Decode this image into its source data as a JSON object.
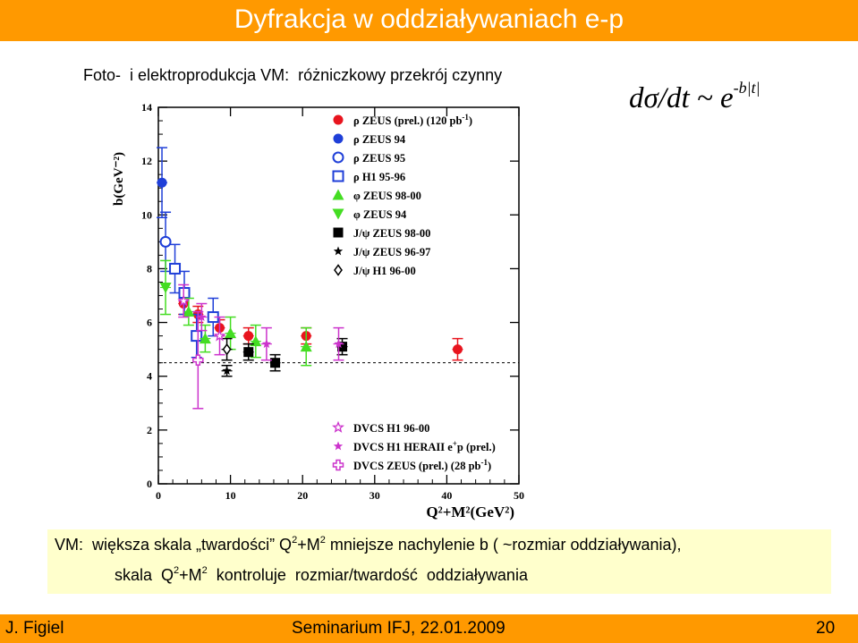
{
  "title": "Dyfrakcja w oddziaływaniach e-p",
  "subtitle": "Foto-  i elektroprodukcja VM:  różniczkowy przekrój czynny",
  "formula": {
    "base": "dσ/dt ~ e",
    "exp": "-b|t|"
  },
  "note": {
    "line1_a": "VM:  większa skala „twardości” Q",
    "line1_sup1": "2",
    "line1_b": "+M",
    "line1_sup2": "2",
    "line1_c": " mniejsze nachylenie b ( ~rozmiar oddziaływania),",
    "line2_a": "skala  Q",
    "line2_sup1": "2",
    "line2_b": "+M",
    "line2_sup2": "2",
    "line2_c": "  kontroluje  rozmiar/twardość  oddziaływania"
  },
  "footer": {
    "author": "J. Figiel",
    "event": "Seminarium IFJ, 22.01.2009",
    "page": "20"
  },
  "colors": {
    "accent": "#ff9900",
    "note_bg": "#ffffcc",
    "red": "#e8141e",
    "blue": "#1f3fd8",
    "green": "#44dd22",
    "magenta": "#cc33cc"
  },
  "chart_data": {
    "type": "scatter",
    "xlabel": "Q²+M²(GeV²)",
    "ylabel": "b(GeV⁻²)",
    "xlim": [
      0,
      50
    ],
    "ylim": [
      0,
      14
    ],
    "xticks": [
      "0",
      "10",
      "20",
      "30",
      "40",
      "50"
    ],
    "yticks": [
      "0",
      "2",
      "4",
      "6",
      "8",
      "10",
      "12",
      "14"
    ],
    "reference_line_y": 4.5,
    "series": [
      {
        "name": "ρ ZEUS (prel.) (120 pb",
        "sup": "-1",
        "name_end": ")",
        "marker": "filled-circle",
        "color": "#e8141e",
        "points": [
          [
            3.5,
            6.7,
            0.4
          ],
          [
            5.5,
            6.3,
            0.3
          ],
          [
            8.5,
            5.8,
            0.3
          ],
          [
            12.5,
            5.5,
            0.3
          ],
          [
            20.5,
            5.5,
            0.3
          ],
          [
            41.5,
            5.0,
            0.4
          ]
        ]
      },
      {
        "name": "ρ ZEUS 94",
        "marker": "filled-circle",
        "color": "#1f3fd8",
        "points": [
          [
            0.5,
            11.2,
            1.3
          ]
        ]
      },
      {
        "name": "ρ ZEUS 95",
        "marker": "open-circle",
        "color": "#1f3fd8",
        "points": [
          [
            1,
            9.0,
            1.1
          ]
        ]
      },
      {
        "name": "ρ H1 95-96",
        "marker": "open-square",
        "color": "#1f3fd8",
        "points": [
          [
            2.3,
            8.0,
            0.9
          ],
          [
            3.6,
            7.1,
            0.8
          ],
          [
            5.3,
            5.5,
            0.8
          ],
          [
            7.6,
            6.2,
            0.7
          ]
        ]
      },
      {
        "name": "φ ZEUS 98-00",
        "marker": "filled-triangle-up",
        "color": "#44dd22",
        "points": [
          [
            4.2,
            6.4,
            0.5
          ],
          [
            6.5,
            5.4,
            0.5
          ],
          [
            10.0,
            5.6,
            0.6
          ],
          [
            13.5,
            5.3,
            0.6
          ],
          [
            20.5,
            5.1,
            0.7
          ]
        ]
      },
      {
        "name": "φ ZEUS 94",
        "marker": "filled-triangle-down",
        "color": "#44dd22",
        "points": [
          [
            1,
            7.3,
            1.0
          ]
        ]
      },
      {
        "name": "J/ψ ZEUS 98-00",
        "marker": "filled-square",
        "color": "#000000",
        "points": [
          [
            12.5,
            4.9,
            0.3
          ],
          [
            16.2,
            4.5,
            0.3
          ],
          [
            25.5,
            5.1,
            0.3
          ]
        ]
      },
      {
        "name": "J/ψ ZEUS 96-97",
        "marker": "filled-star",
        "color": "#000000",
        "points": [
          [
            9.5,
            4.2,
            0.2
          ]
        ]
      },
      {
        "name": "J/ψ H1 96-00",
        "marker": "open-diamond",
        "color": "#000000",
        "points": [
          [
            9.5,
            5.0,
            0.4
          ]
        ]
      },
      {
        "name": "DVCS H1 96-00",
        "marker": "open-star",
        "color": "#cc33cc",
        "points": [
          [
            3.5,
            6.8,
            0.6
          ],
          [
            8.5,
            5.5,
            0.7
          ]
        ]
      },
      {
        "name": "DVCS H1 HERAII e",
        "sup": "+",
        "name_end": "p (prel.)",
        "marker": "filled-star",
        "color": "#cc33cc",
        "points": [
          [
            6.0,
            6.2,
            0.5
          ],
          [
            15.0,
            5.2,
            0.6
          ],
          [
            25.0,
            5.2,
            0.6
          ]
        ]
      },
      {
        "name": "DVCS ZEUS (prel.) (28 pb",
        "sup": "-1",
        "name_end": ")",
        "marker": "open-cross",
        "color": "#cc33cc",
        "points": [
          [
            5.5,
            4.6,
            1.8
          ]
        ]
      }
    ]
  }
}
